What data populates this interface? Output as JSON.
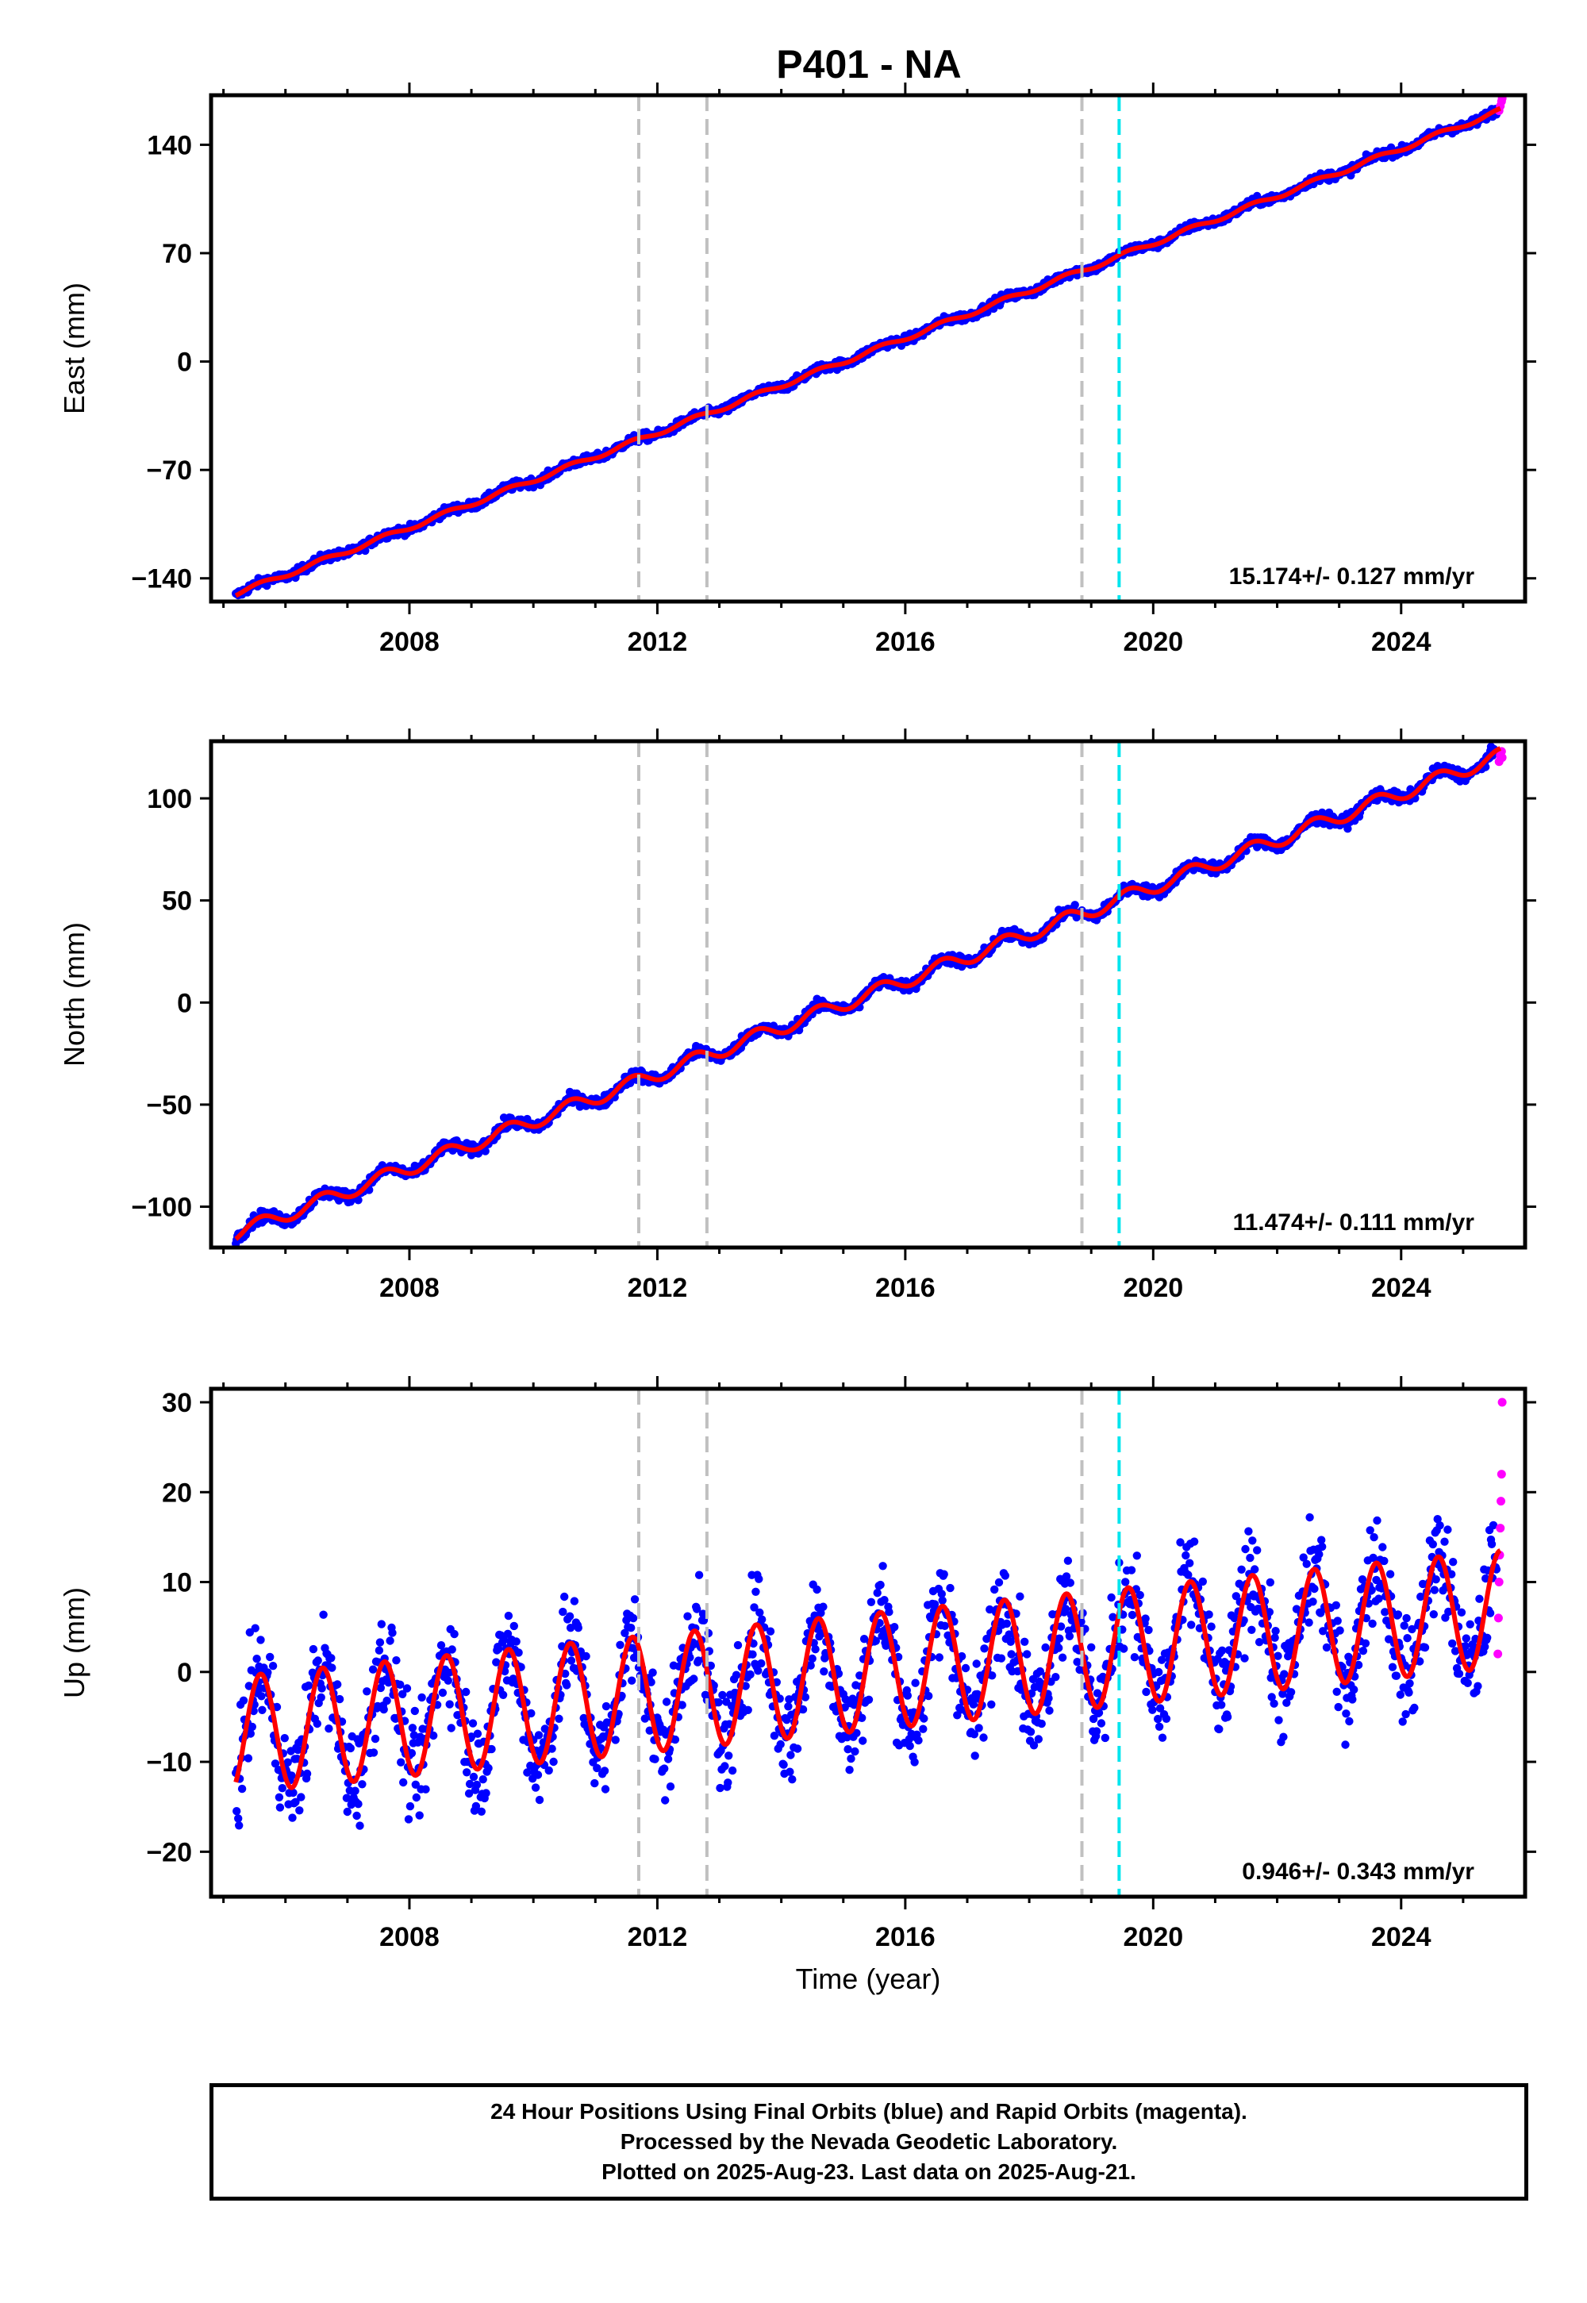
{
  "title": "P401 - NA",
  "colors": {
    "final_orbits": "#0000ff",
    "rapid_orbits": "#ff00ff",
    "model": "#ff0000",
    "gray_lines": "#c0c0c0",
    "cyan_line": "#00e5ee"
  },
  "caption": {
    "line1": "24 Hour Positions Using Final Orbits (blue) and Rapid Orbits (magenta).",
    "line2": "Processed by the Nevada Geodetic Laboratory.",
    "line3": "Plotted on 2025-Aug-23. Last data on 2025-Aug-21."
  },
  "chart_data": [
    {
      "type": "scatter",
      "name": "east",
      "ylabel": "East (mm)",
      "xlim": [
        2004.8,
        2026.0
      ],
      "ylim": [
        -155,
        172
      ],
      "yticks": [
        -140,
        -70,
        0,
        70,
        140
      ],
      "xticks": [
        2008,
        2012,
        2016,
        2020,
        2024
      ],
      "velocity_label": "15.174+/- 0.127 mm/yr",
      "trend": {
        "x_start": 2005.2,
        "y_start": -150,
        "x_end": 2025.6,
        "y_end": 162
      },
      "seasonal_amplitude": 1.5,
      "scatter_noise": 2,
      "model_offsets": [],
      "rapid_points": [
        [
          2025.58,
          162
        ],
        [
          2025.6,
          165
        ],
        [
          2025.62,
          168
        ],
        [
          2025.63,
          170
        ]
      ],
      "gray_equipment_lines": [
        2011.7,
        2012.8,
        2018.85
      ],
      "cyan_line": 2019.45
    },
    {
      "type": "scatter",
      "name": "north",
      "ylabel": "North (mm)",
      "xlim": [
        2004.8,
        2026.0
      ],
      "ylim": [
        -120,
        128
      ],
      "yticks": [
        -100,
        -50,
        0,
        50,
        100
      ],
      "xticks": [
        2008,
        2012,
        2016,
        2020,
        2024
      ],
      "velocity_label": "11.474+/- 0.111 mm/yr",
      "trend": {
        "x_start": 2005.2,
        "y_start": -113,
        "x_end": 2025.6,
        "y_end": 121
      },
      "seasonal_amplitude": 3.5,
      "scatter_noise": 2,
      "model_offsets": [],
      "rapid_points": [
        [
          2025.58,
          118
        ],
        [
          2025.6,
          121
        ],
        [
          2025.62,
          123
        ],
        [
          2025.63,
          120
        ]
      ],
      "gray_equipment_lines": [
        2011.7,
        2012.8,
        2018.85
      ],
      "cyan_line": 2019.45
    },
    {
      "type": "scatter",
      "name": "up",
      "ylabel": "Up (mm)",
      "xlabel": "Time (year)",
      "xlim": [
        2004.8,
        2026.0
      ],
      "ylim": [
        -25,
        31.5
      ],
      "yticks": [
        -20,
        -10,
        0,
        10,
        20,
        30
      ],
      "xticks": [
        2008,
        2012,
        2016,
        2020,
        2024
      ],
      "velocity_label": "0.946+/- 0.343 mm/yr",
      "trend": {
        "x_start": 2005.2,
        "y_start": -7,
        "x_end": 2025.6,
        "y_end": 7
      },
      "seasonal_amplitude": 6.5,
      "scatter_noise": 4,
      "model_offsets": [],
      "rapid_points": [
        [
          2025.56,
          2
        ],
        [
          2025.57,
          6
        ],
        [
          2025.58,
          10
        ],
        [
          2025.59,
          13
        ],
        [
          2025.6,
          16
        ],
        [
          2025.61,
          19
        ],
        [
          2025.62,
          22
        ],
        [
          2025.63,
          30
        ]
      ],
      "gray_equipment_lines": [
        2011.7,
        2012.8,
        2018.85
      ],
      "cyan_line": 2019.45
    }
  ]
}
